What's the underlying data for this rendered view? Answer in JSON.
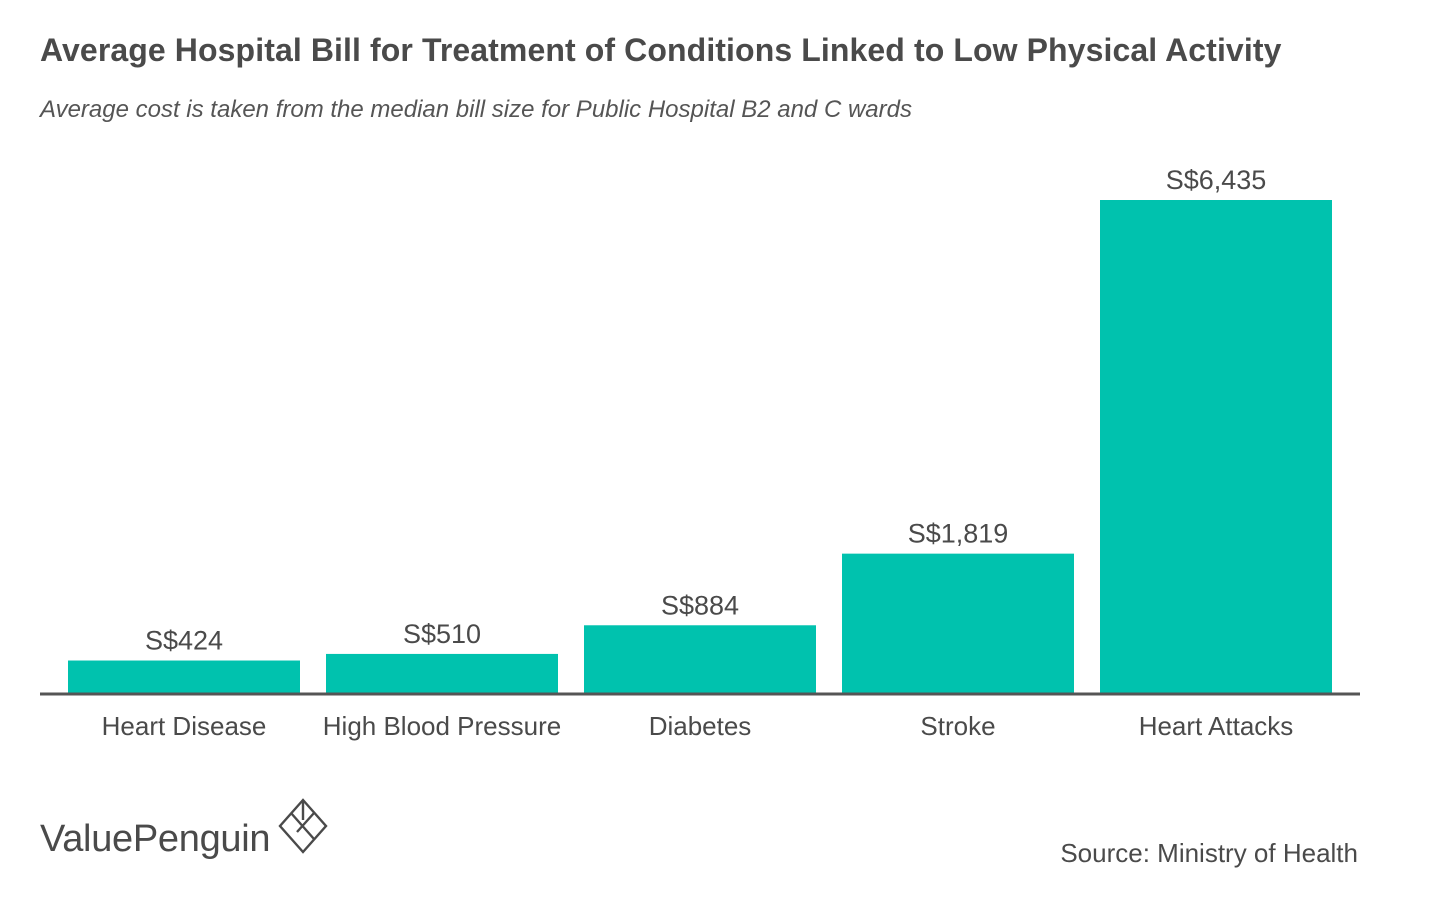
{
  "title": "Average Hospital Bill for Treatment of Conditions Linked to Low Physical Activity",
  "subtitle": "Average cost is taken from the median bill size for Public Hospital B2 and C wards",
  "logo_text": "ValuePenguin",
  "source": "Source: Ministry of Health",
  "colors": {
    "bar": "#00c2ae",
    "axis": "#555555",
    "text": "#4a4a4a"
  },
  "chart_data": {
    "type": "bar",
    "categories": [
      "Heart Disease",
      "High Blood Pressure",
      "Diabetes",
      "Stroke",
      "Heart Attacks"
    ],
    "values": [
      424,
      510,
      884,
      1819,
      6435
    ],
    "value_labels": [
      "S$424",
      "S$510",
      "S$884",
      "S$1,819",
      "S$6,435"
    ],
    "ylim": [
      0,
      6435
    ],
    "grid": false,
    "legend": "none"
  }
}
